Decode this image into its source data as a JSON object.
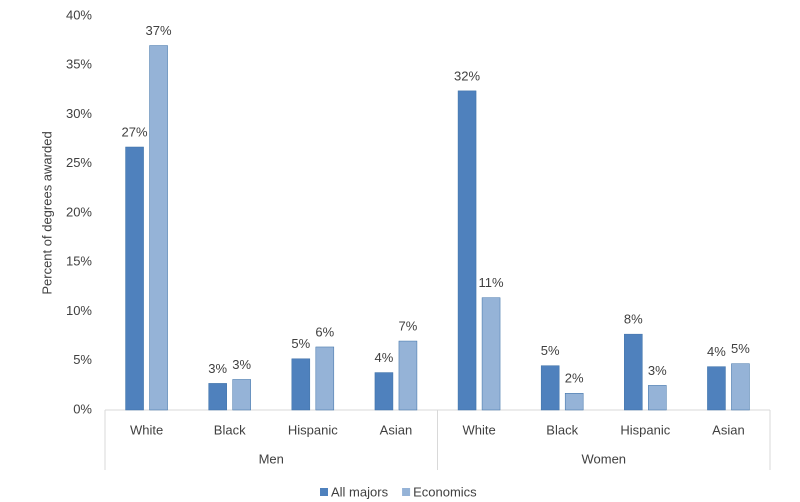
{
  "chart_data": {
    "type": "bar",
    "y_label": "Percent of degrees awarded",
    "categories": [
      "White",
      "Black",
      "Hispanic",
      "Asian",
      "White",
      "Black",
      "Hispanic",
      "Asian"
    ],
    "groups": [
      "Men",
      "Women"
    ],
    "series": [
      {
        "name": "All majors",
        "color": "#4f81bd",
        "values": [
          26.7,
          2.7,
          5.2,
          3.8,
          32.4,
          4.5,
          7.7,
          4.4
        ],
        "value_labels": [
          "27%",
          "3%",
          "5%",
          "4%",
          "32%",
          "5%",
          "8%",
          "4%"
        ]
      },
      {
        "name": "Economics",
        "color": "#95b3d7",
        "values": [
          37.0,
          3.1,
          6.4,
          7.0,
          11.4,
          1.7,
          2.5,
          4.7
        ],
        "value_labels": [
          "37%",
          "3%",
          "6%",
          "7%",
          "11%",
          "2%",
          "3%",
          "5%"
        ]
      }
    ],
    "ylim": [
      0,
      40
    ],
    "yticks": [
      {
        "value": 0,
        "label": "0%"
      },
      {
        "value": 5,
        "label": "5%"
      },
      {
        "value": 10,
        "label": "10%"
      },
      {
        "value": 15,
        "label": "15%"
      },
      {
        "value": 20,
        "label": "20%"
      },
      {
        "value": 25,
        "label": "25%"
      },
      {
        "value": 30,
        "label": "30%"
      },
      {
        "value": 35,
        "label": "35%"
      },
      {
        "value": 40,
        "label": "40%"
      }
    ],
    "legend": "bottom"
  }
}
